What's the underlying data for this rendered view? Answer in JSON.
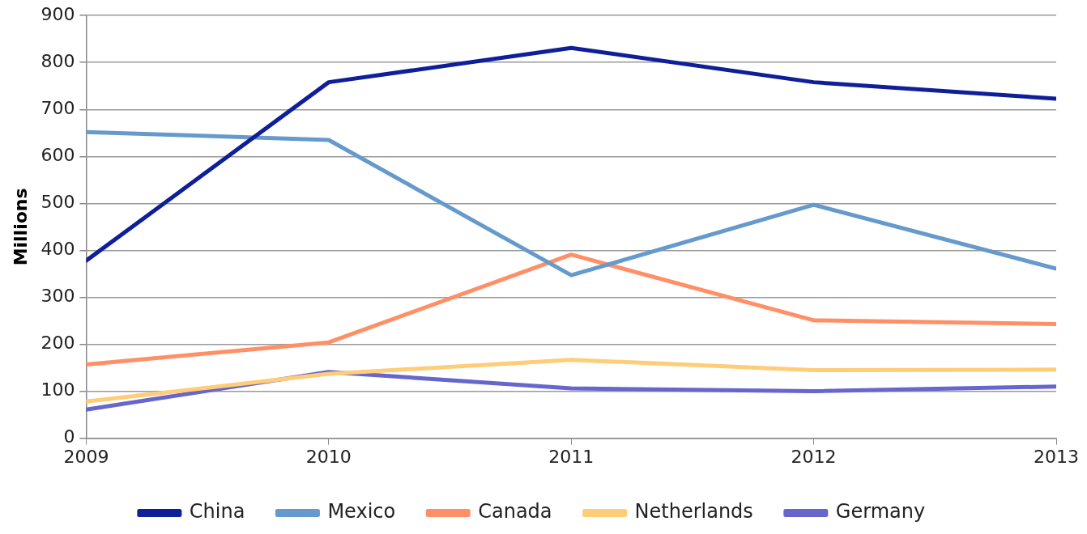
{
  "chart_data": {
    "type": "line",
    "ylabel": "Millions",
    "x": [
      2009,
      2010,
      2011,
      2012,
      2013
    ],
    "series": [
      {
        "name": "China",
        "color": "#0f1f99",
        "values": [
          378,
          758,
          831,
          758,
          723
        ]
      },
      {
        "name": "Mexico",
        "color": "#6699cc",
        "values": [
          652,
          635,
          347,
          497,
          361
        ]
      },
      {
        "name": "Canada",
        "color": "#ff8f66",
        "values": [
          157,
          204,
          391,
          251,
          243
        ]
      },
      {
        "name": "Netherlands",
        "color": "#ffcc77",
        "values": [
          78,
          137,
          167,
          145,
          146
        ]
      },
      {
        "name": "Germany",
        "color": "#6666cc",
        "values": [
          61,
          141,
          106,
          100,
          110
        ]
      }
    ],
    "xlim": [
      2009,
      2013
    ],
    "xticks": [
      2009,
      2010,
      2011,
      2012,
      2013
    ],
    "ylim": [
      0,
      900
    ],
    "yticks": [
      0,
      100,
      200,
      300,
      400,
      500,
      600,
      700,
      800,
      900
    ],
    "grid": "y",
    "legend": "bottom",
    "marker": "none",
    "line_style": "solid"
  }
}
